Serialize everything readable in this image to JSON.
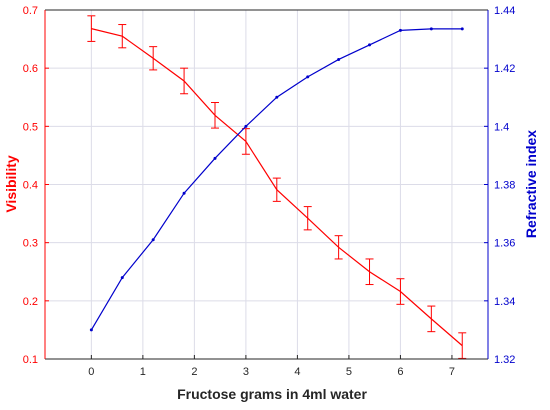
{
  "chart_data": {
    "type": "line",
    "xlabel": "Fructose grams in 4ml water",
    "ylabel_left": "Visibility",
    "ylabel_right": "Refractive index",
    "xlim": [
      -0.9,
      7.7
    ],
    "ylim_left": [
      0.1,
      0.7
    ],
    "ylim_right": [
      1.32,
      1.44
    ],
    "x_ticks": [
      "0",
      "1",
      "2",
      "3",
      "4",
      "5",
      "6",
      "7"
    ],
    "y_left_ticks": [
      "0.1",
      "0.2",
      "0.3",
      "0.4",
      "0.5",
      "0.6",
      "0.7"
    ],
    "y_right_ticks": [
      "1.32",
      "1.34",
      "1.36",
      "1.38",
      "1.4",
      "1.42",
      "1.44"
    ],
    "grid": true,
    "colors": {
      "visibility": "#ff0000",
      "refractive_index": "#0000cc",
      "grid": "#dcdce8",
      "axis_left": "#ff0000",
      "axis_right": "#0000cc",
      "axis_bottom": "#262626"
    },
    "series": [
      {
        "axis": "left",
        "x": [
          0,
          0.6,
          1.2,
          1.8,
          2.4,
          3.0,
          3.6,
          4.2,
          4.8,
          5.4,
          6.0,
          6.6,
          7.2
        ],
        "y": [
          0.668,
          0.655,
          0.617,
          0.578,
          0.519,
          0.474,
          0.391,
          0.342,
          0.292,
          0.25,
          0.216,
          0.169,
          0.123
        ],
        "error": [
          0.022,
          0.02,
          0.02,
          0.022,
          0.022,
          0.022,
          0.02,
          0.02,
          0.02,
          0.022,
          0.022,
          0.022,
          0.022
        ]
      },
      {
        "axis": "right",
        "x": [
          0,
          0.6,
          1.2,
          1.8,
          2.4,
          3.0,
          3.6,
          4.2,
          4.8,
          5.4,
          6.0,
          6.6,
          7.2
        ],
        "y": [
          1.33,
          1.348,
          1.361,
          1.377,
          1.389,
          1.4,
          1.41,
          1.417,
          1.423,
          1.428,
          1.433,
          1.4335,
          1.4335
        ]
      }
    ]
  }
}
